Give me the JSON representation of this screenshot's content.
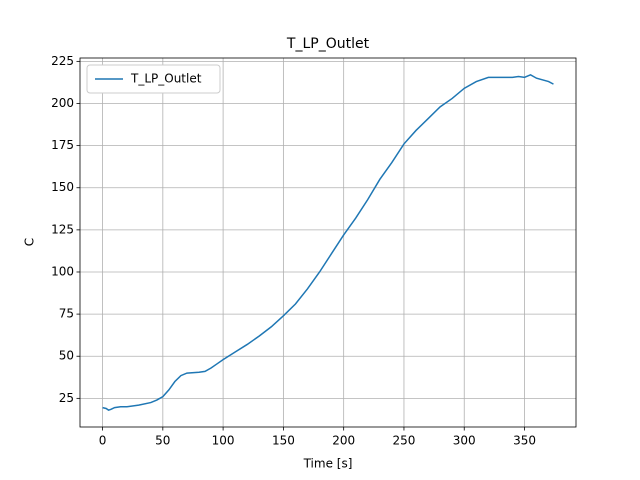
{
  "chart_data": {
    "type": "line",
    "title": "T_LP_Outlet",
    "xlabel": "Time [s]",
    "ylabel": "C",
    "x": [
      0,
      3,
      5,
      7,
      10,
      15,
      20,
      30,
      40,
      45,
      50,
      55,
      60,
      65,
      70,
      80,
      85,
      90,
      95,
      100,
      110,
      120,
      130,
      140,
      150,
      160,
      170,
      180,
      190,
      200,
      210,
      220,
      230,
      240,
      250,
      260,
      270,
      280,
      290,
      300,
      310,
      320,
      330,
      340,
      345,
      350,
      355,
      360,
      370,
      374
    ],
    "series": [
      {
        "name": "T_LP_Outlet",
        "color": "#1f77b4",
        "values": [
          19.5,
          19,
          18,
          18.5,
          19.5,
          20,
          20,
          21,
          22.5,
          24,
          26,
          30,
          35,
          38.5,
          40,
          40.5,
          41,
          43,
          45.5,
          48,
          52.5,
          57,
          62,
          67.5,
          74,
          81,
          90,
          100,
          111,
          122,
          132,
          143,
          155,
          165,
          176,
          184,
          191,
          198,
          203,
          209,
          213,
          215.5,
          215.5,
          215.5,
          216,
          215.5,
          217,
          215,
          213,
          211.5
        ]
      }
    ],
    "xlim": [
      -18.7,
      392.7
    ],
    "xticks": [
      0,
      50,
      100,
      150,
      200,
      250,
      300,
      350
    ],
    "ylim": [
      8,
      227
    ],
    "yticks": [
      25,
      50,
      75,
      100,
      125,
      150,
      175,
      200,
      225
    ],
    "grid": true,
    "legend": "upper left"
  }
}
